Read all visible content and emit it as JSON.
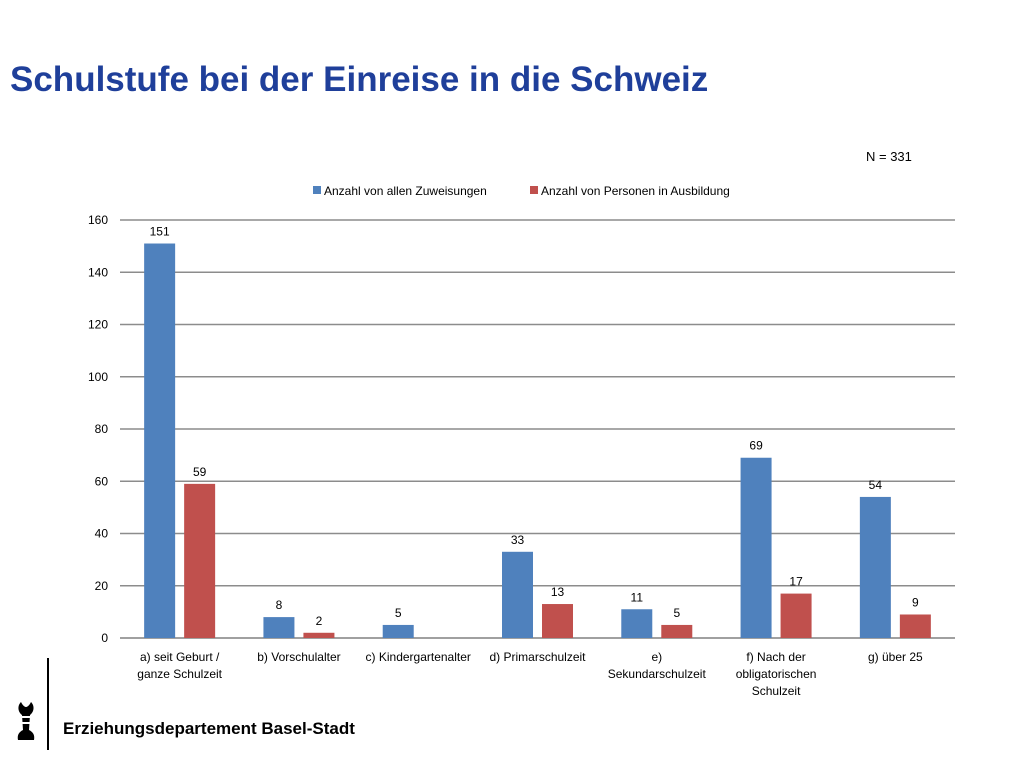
{
  "page": {
    "title": "Schulstufe bei der Einreise in die Schweiz",
    "n_label": "N = 331",
    "footer": "Erziehungsdepartement Basel-Stadt"
  },
  "colors": {
    "title": "#1f3f9a",
    "series1": "#4f81bd",
    "series2": "#c0504d"
  },
  "chart_data": {
    "type": "bar",
    "categories": [
      [
        "a) seit Geburt /",
        "ganze Schulzeit"
      ],
      [
        "b) Vorschulalter"
      ],
      [
        "c) Kindergartenalter"
      ],
      [
        "d) Primarschulzeit"
      ],
      [
        "e)",
        "Sekundarschulzeit"
      ],
      [
        "f) Nach der",
        "obligatorischen",
        "Schulzeit"
      ],
      [
        "g) über 25"
      ]
    ],
    "series": [
      {
        "name": "Anzahl von allen Zuweisungen",
        "color": "#4f81bd",
        "values": [
          151,
          8,
          5,
          33,
          11,
          69,
          54
        ]
      },
      {
        "name": "Anzahl von Personen in Ausbildung",
        "color": "#c0504d",
        "values": [
          59,
          2,
          null,
          13,
          5,
          17,
          9
        ]
      }
    ],
    "ylim": [
      0,
      160
    ],
    "yticks": [
      0,
      20,
      40,
      60,
      80,
      100,
      120,
      140,
      160
    ],
    "grid": true,
    "legend": "top",
    "data_labels": true
  }
}
